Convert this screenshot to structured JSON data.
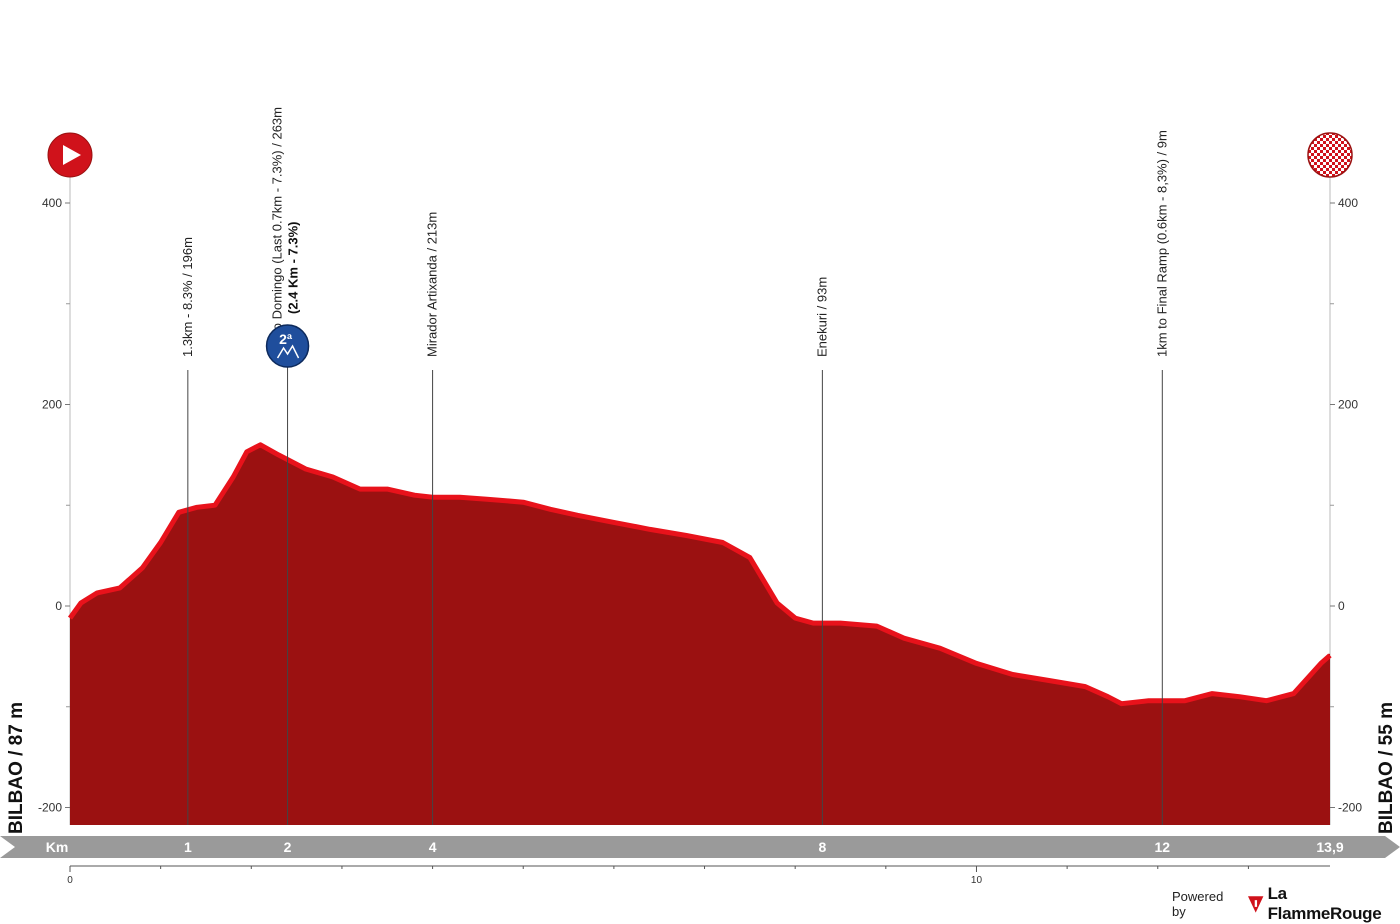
{
  "chart_data": {
    "type": "area",
    "title": "",
    "xlabel": "Km",
    "ylabel": "",
    "xlim": [
      0,
      13.9
    ],
    "ylim": [
      -220,
      420
    ],
    "y_ticks": [
      -200,
      0,
      200,
      400
    ],
    "y_tick_labels": [
      "-200",
      "0",
      "200",
      "400"
    ],
    "x_km_ticks": [
      1,
      2,
      4,
      8,
      12
    ],
    "x_km_tick_labels": [
      "1",
      "2",
      "4",
      "8",
      "12"
    ],
    "x_end_label": "13,9",
    "x_axis_label": "Km",
    "x_small_ticks": [
      0,
      10
    ],
    "x_small_tick_labels": [
      "0",
      "10"
    ],
    "grid": false,
    "start_label": "BILBAO / 87 m",
    "finish_label": "BILBAO / 55 m",
    "fill_color": "#9b1111",
    "edge_color": "#e8121b",
    "series": [
      {
        "x": [
          0,
          0.12,
          0.3,
          0.55,
          0.8,
          1.0,
          1.2,
          1.4,
          1.6,
          1.8,
          1.95,
          2.1,
          2.3,
          2.6,
          2.9,
          3.2,
          3.5,
          3.8,
          4.0,
          4.3,
          4.6,
          5.0,
          5.3,
          5.6,
          6.0,
          6.4,
          6.8,
          7.2,
          7.5,
          7.8,
          8.0,
          8.2,
          8.5,
          8.9,
          9.2,
          9.6,
          10.0,
          10.4,
          10.8,
          11.2,
          11.45,
          11.6,
          11.9,
          12.3,
          12.6,
          12.9,
          13.2,
          13.5,
          13.8,
          13.9
        ],
        "y": [
          -10,
          5,
          15,
          20,
          40,
          65,
          95,
          100,
          102,
          130,
          155,
          162,
          152,
          138,
          130,
          118,
          118,
          112,
          110,
          110,
          108,
          105,
          98,
          92,
          85,
          78,
          72,
          65,
          50,
          5,
          -10,
          -15,
          -15,
          -18,
          -30,
          -40,
          -55,
          -66,
          -72,
          -78,
          -88,
          -95,
          -92,
          -92,
          -85,
          -88,
          -92,
          -85,
          -55,
          -47
        ]
      }
    ],
    "markers": [
      {
        "x": 1.3,
        "label": "1.3km - 8.3% / 196m",
        "sub": ""
      },
      {
        "x": 2.4,
        "label": "Santo Domingo (Last 0.7km - 7.3%) / 263m",
        "sub": "(2.4 Km - 7.3%)",
        "badge": "2ª"
      },
      {
        "x": 4.0,
        "label": "Mirador Artixanda / 213m",
        "sub": ""
      },
      {
        "x": 8.3,
        "label": "Enekuri / 93m",
        "sub": ""
      },
      {
        "x": 12.05,
        "label": "1km to Final Ramp (0.6km - 8,3%) / 9m",
        "sub": ""
      }
    ]
  },
  "footer": {
    "powered_by": "Powered by",
    "brand_name": "La FlammeRouge"
  }
}
